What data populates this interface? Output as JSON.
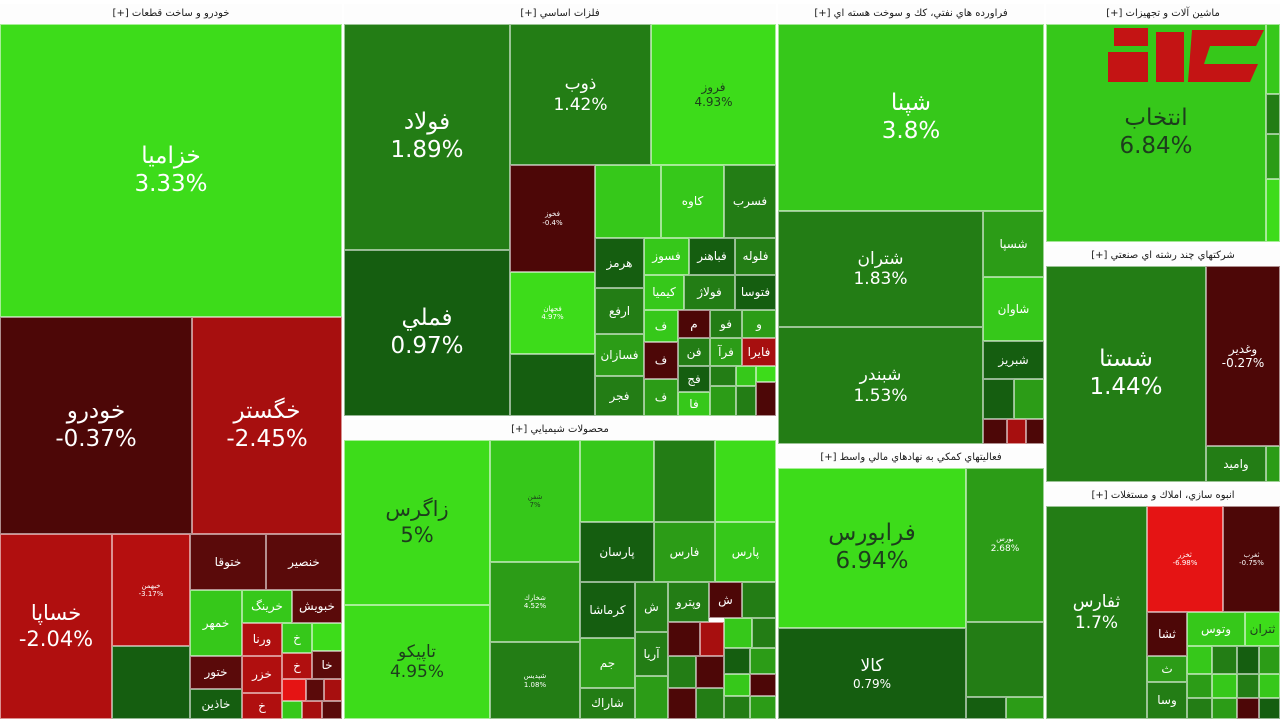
{
  "sections": {
    "auto": "خودرو و ساخت قطعات [+]",
    "metals": "فلزات اساسي [+]",
    "refinery": "فراورده هاي نفتي، كك و سوخت هسته اي [+]",
    "machinery": "ماشين آلات و تجهيزات [+]",
    "multi": "شركتهاي چند رشته اي صنعتي [+]",
    "chemical": "محصولات شيميايي [+]",
    "financial": "فعاليتهاي كمكي به نهادهاي مالي واسط [+]",
    "realestate": "انبوه سازي، املاك و مستغلات [+]"
  },
  "tiles": {
    "khazamia": {
      "name": "خزاميا",
      "pct": "3.33%"
    },
    "khodro": {
      "name": "خودرو",
      "pct": "-0.37%"
    },
    "khegostar": {
      "name": "خگستر",
      "pct": "-2.45%"
    },
    "khsapa": {
      "name": "خساپا",
      "pct": "-2.04%"
    },
    "khbahman": {
      "name": "خبهمن",
      "pct": "-3.17%"
    },
    "khtooga": {
      "name": "ختوقا"
    },
    "khensir": {
      "name": "خنصير"
    },
    "khmehr": {
      "name": "خمهر"
    },
    "kharang": {
      "name": "خرينگ"
    },
    "khaboush": {
      "name": "خبويش"
    },
    "varna": {
      "name": "ورنا"
    },
    "khtour": {
      "name": "ختور"
    },
    "khazar": {
      "name": "خزر"
    },
    "khazin": {
      "name": "خاذين"
    },
    "kh1": {
      "name": "خ"
    },
    "kh2": {
      "name": "خ"
    },
    "kha": {
      "name": "خا"
    },
    "kh3": {
      "name": "خ"
    },
    "fooolad": {
      "name": "فولاد",
      "pct": "1.89%"
    },
    "fameli": {
      "name": "فملي",
      "pct": "0.97%"
    },
    "zob": {
      "name": "ذوب",
      "pct": "1.42%"
    },
    "firooz": {
      "name": "فروز",
      "pct": "4.93%"
    },
    "fkhooz": {
      "name": "فخوز",
      "pct": "-0.4%"
    },
    "fjahan": {
      "name": "فجهان",
      "pct": "4.97%"
    },
    "kave": {
      "name": "كاوه"
    },
    "fsarb": {
      "name": "فسرب"
    },
    "hormoz": {
      "name": "هرمز"
    },
    "fsooz": {
      "name": "فسوز"
    },
    "fbahonar": {
      "name": "فباهنر"
    },
    "foleh": {
      "name": "فلوله"
    },
    "arfa": {
      "name": "ارفع"
    },
    "kimia": {
      "name": "كيميا"
    },
    "foolaj": {
      "name": "فولاژ"
    },
    "ftoosa": {
      "name": "فتوسا"
    },
    "fsazan": {
      "name": "فسازان"
    },
    "fajr": {
      "name": "فجر"
    },
    "faira": {
      "name": "فايرا"
    },
    "m1": {
      "name": "فو"
    },
    "m2": {
      "name": "م"
    },
    "m3": {
      "name": "ف"
    },
    "m4": {
      "name": "فن"
    },
    "m5": {
      "name": "فرآ"
    },
    "m6": {
      "name": "ف"
    },
    "m7": {
      "name": "فج"
    },
    "m8": {
      "name": "ف"
    },
    "m9": {
      "name": "فا"
    },
    "m10": {
      "name": "و"
    },
    "shpna": {
      "name": "شپنا",
      "pct": "3.8%"
    },
    "shtran": {
      "name": "شتران",
      "pct": "1.83%"
    },
    "shbandar": {
      "name": "شبندر",
      "pct": "1.53%"
    },
    "shsepa": {
      "name": "شسپا"
    },
    "shavan": {
      "name": "شاوان"
    },
    "shbriz": {
      "name": "شبريز"
    },
    "entekhab": {
      "name": "انتخاب",
      "pct": "6.84%"
    },
    "shasta": {
      "name": "شستا",
      "pct": "1.44%"
    },
    "vghadir": {
      "name": "وغدير",
      "pct": "-0.27%"
    },
    "vamid": {
      "name": "واميد"
    },
    "zagros": {
      "name": "زاگرس",
      "pct": "5%"
    },
    "tapiko": {
      "name": "تاپيكو",
      "pct": "4.95%"
    },
    "shefan": {
      "name": "شفن",
      "pct": "7%"
    },
    "shkhark": {
      "name": "شخارك",
      "pct": "4.52%"
    },
    "shpdis": {
      "name": "شپديس",
      "pct": "1.08%"
    },
    "parsan": {
      "name": "پارسان"
    },
    "fars": {
      "name": "فارس"
    },
    "pars": {
      "name": "پارس"
    },
    "kermasha": {
      "name": "كرماشا"
    },
    "vpetro": {
      "name": "وپترو"
    },
    "jam": {
      "name": "جم"
    },
    "arya": {
      "name": "آريا"
    },
    "sharak": {
      "name": "شاراك"
    },
    "c1": {
      "name": "ش"
    },
    "c2": {
      "name": "ش"
    },
    "faraboors": {
      "name": "فرابورس",
      "pct": "6.94%"
    },
    "kala": {
      "name": "كالا",
      "pct": "0.79%"
    },
    "boors": {
      "name": "بورس",
      "pct": "2.68%"
    },
    "sefars": {
      "name": "ثفارس",
      "pct": "1.7%"
    },
    "vtoos": {
      "name": "وتوس"
    },
    "setran": {
      "name": "ثتران"
    },
    "sekhaz": {
      "name": "ثخزر",
      "pct": "-6.98%"
    },
    "r1": {
      "name": "ثشا"
    },
    "r2": {
      "name": "ث"
    },
    "r3": {
      "name": "وسا"
    },
    "r4": {
      "name": "ثغرب",
      "pct": "-0.75%"
    }
  },
  "colors": {
    "brightGreen": "#3ddc1a",
    "limeGreen": "#36c81a",
    "midGreen": "#2c9c17",
    "green": "#237d15",
    "darkGreen": "#155e10",
    "darkRed": "#4d0707",
    "red": "#a70f0f",
    "brightRed": "#e51414"
  }
}
